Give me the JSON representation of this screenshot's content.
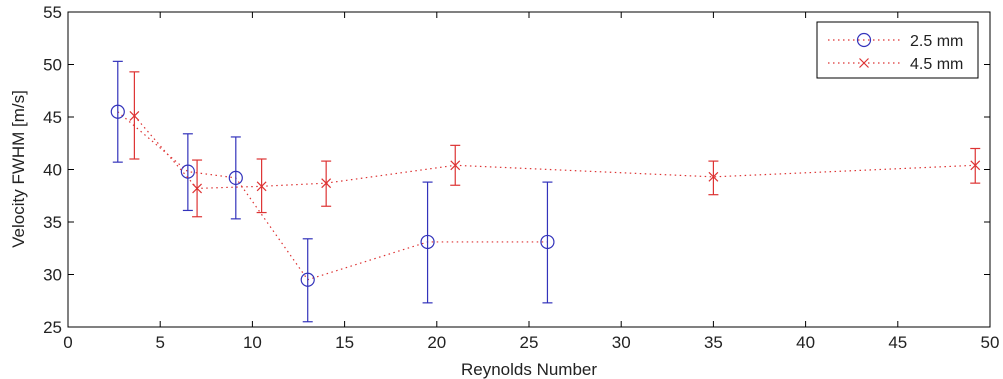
{
  "chart_data": {
    "type": "scatter",
    "xlabel": "Reynolds Number",
    "ylabel": "Velocity FWHM [m/s]",
    "xlim": [
      0,
      50
    ],
    "ylim": [
      25,
      55
    ],
    "xticks": [
      0,
      5,
      10,
      15,
      20,
      25,
      30,
      35,
      40,
      45,
      50
    ],
    "yticks": [
      25,
      30,
      35,
      40,
      45,
      50,
      55
    ],
    "grid": false,
    "legend": "top-right",
    "series": [
      {
        "name": "2.5 mm",
        "marker": "circle",
        "color": "#3333bb",
        "x": [
          2.7,
          6.5,
          9.1,
          13.0,
          19.5,
          26.0
        ],
        "y": [
          45.5,
          39.8,
          39.2,
          29.5,
          33.1,
          33.1
        ],
        "err_low": [
          40.7,
          36.1,
          35.3,
          25.5,
          27.3,
          27.3
        ],
        "err_high": [
          50.3,
          43.4,
          43.1,
          33.4,
          38.8,
          38.8
        ]
      },
      {
        "name": "4.5 mm",
        "marker": "x",
        "color": "#dd3333",
        "x": [
          3.6,
          7.0,
          10.5,
          14.0,
          21.0,
          35.0,
          49.2
        ],
        "y": [
          45.1,
          38.2,
          38.4,
          38.7,
          40.4,
          39.3,
          40.4
        ],
        "err_low": [
          41.0,
          35.5,
          35.9,
          36.5,
          38.5,
          37.6,
          38.7
        ],
        "err_high": [
          49.3,
          40.9,
          41.0,
          40.8,
          42.3,
          40.8,
          42.0
        ]
      }
    ]
  }
}
